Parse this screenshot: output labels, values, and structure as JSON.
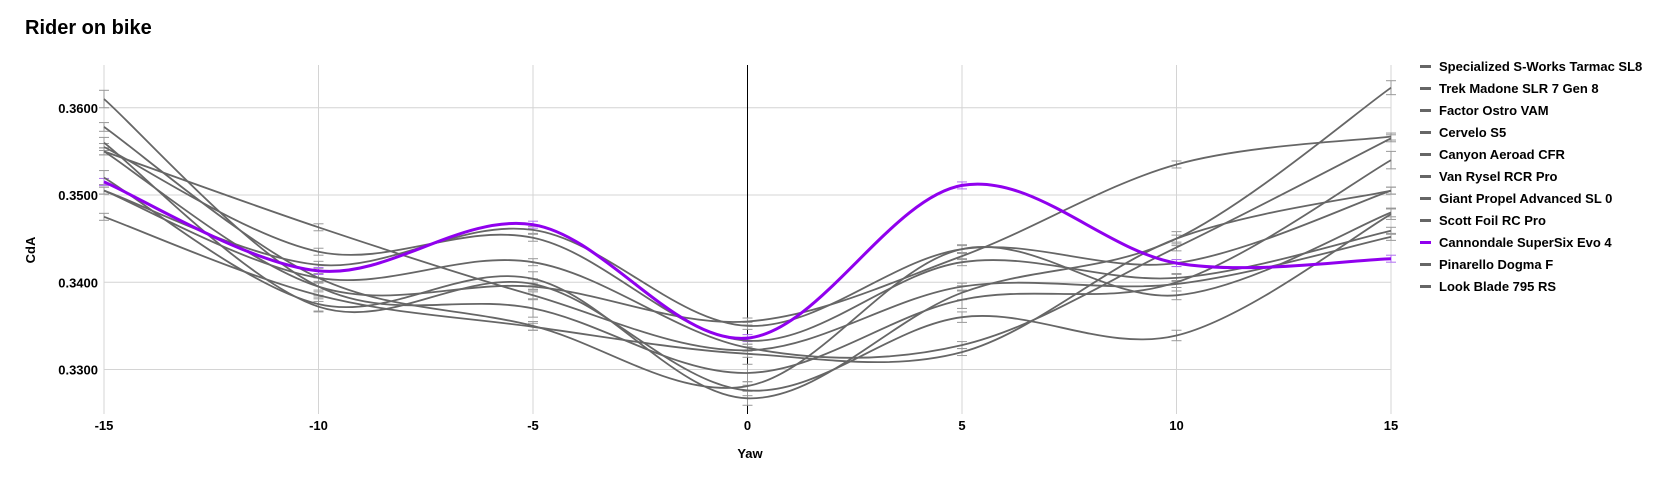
{
  "chart_data": {
    "type": "line",
    "title": "Rider on bike",
    "xlabel": "Yaw",
    "ylabel": "CdA",
    "x": [
      -15,
      -10,
      -5,
      0,
      5,
      10,
      15
    ],
    "xlim": [
      -15,
      15
    ],
    "ylim": [
      0.3249,
      0.3649
    ],
    "xticks": [
      "-15",
      "-10",
      "-5",
      "0",
      "5",
      "10",
      "15"
    ],
    "yticks": [
      "0.3300",
      "0.3400",
      "0.3500",
      "0.3600"
    ],
    "ytick_values": [
      0.33,
      0.34,
      0.35,
      0.36
    ],
    "grid": true,
    "legend_position": "right",
    "highlight_color": "#9000ee",
    "default_color": "#666666",
    "series": [
      {
        "name": "Specialized S-Works Tarmac SL8",
        "values": [
          0.3555,
          0.3435,
          0.3451,
          0.3333,
          0.3423,
          0.3405,
          0.3459
        ],
        "error": 0.0004
      },
      {
        "name": "Trek Madone SLR 7 Gen 8",
        "values": [
          0.352,
          0.3375,
          0.3404,
          0.3267,
          0.3388,
          0.345,
          0.3623
        ],
        "error": 0.0008
      },
      {
        "name": "Factor Ostro VAM",
        "values": [
          0.3578,
          0.3405,
          0.335,
          0.3281,
          0.3438,
          0.3385,
          0.348
        ],
        "error": 0.0005
      },
      {
        "name": "Cervelo S5",
        "values": [
          0.361,
          0.3395,
          0.337,
          0.3296,
          0.338,
          0.34,
          0.354
        ],
        "error": 0.001
      },
      {
        "name": "Canyon Aeroad CFR",
        "values": [
          0.3505,
          0.3405,
          0.3423,
          0.3325,
          0.3328,
          0.344,
          0.3565
        ],
        "error": 0.0004
      },
      {
        "name": "Van Rysel RCR Pro",
        "values": [
          0.355,
          0.3395,
          0.3395,
          0.3355,
          0.343,
          0.3535,
          0.3567
        ],
        "error": 0.0004
      },
      {
        "name": "Giant Propel Advanced SL 0",
        "values": [
          0.3475,
          0.3385,
          0.3349,
          0.3318,
          0.332,
          0.345,
          0.3505
        ],
        "error": 0.0004
      },
      {
        "name": "Scott Foil RC Pro",
        "values": [
          0.356,
          0.3372,
          0.3398,
          0.3276,
          0.336,
          0.3339,
          0.3478
        ],
        "error": 0.0006
      },
      {
        "name": "Cannondale SuperSix Evo 4",
        "values": [
          0.3515,
          0.3413,
          0.3466,
          0.3336,
          0.3511,
          0.3422,
          0.3427
        ],
        "error": 0.0004,
        "highlight": true
      },
      {
        "name": "Pinarello Dogma F",
        "values": [
          0.355,
          0.3463,
          0.3385,
          0.3322,
          0.3395,
          0.3398,
          0.3452
        ],
        "error": 0.0004
      },
      {
        "name": "Look Blade 795 RS",
        "values": [
          0.3505,
          0.342,
          0.346,
          0.335,
          0.3438,
          0.3422,
          0.3505
        ],
        "error": 0.0004
      }
    ]
  }
}
